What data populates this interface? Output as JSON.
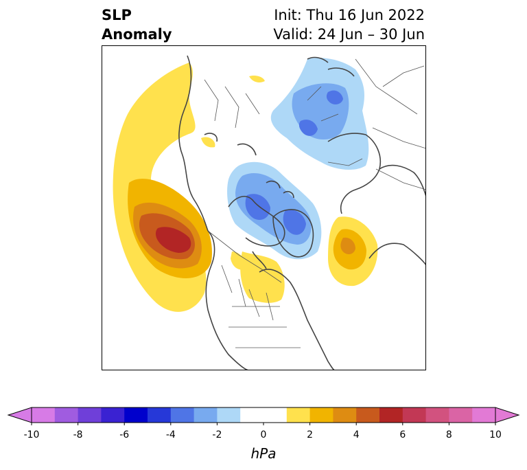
{
  "title": {
    "left_line1": "SLP",
    "left_line2": "Anomaly",
    "init": "Init: Thu 16 Jun 2022",
    "valid": "Valid: 24 Jun – 30 Jun"
  },
  "colorbar": {
    "unit": "hPa",
    "ticks": [
      "-10",
      "-8",
      "-6",
      "-4",
      "-2",
      "0",
      "2",
      "4",
      "6",
      "8",
      "10"
    ],
    "levels": [
      -10,
      -9,
      -8,
      -7,
      -6,
      -5,
      -4,
      -3,
      -2,
      -1,
      1,
      2,
      3,
      4,
      5,
      6,
      7,
      8,
      9,
      10
    ],
    "colors": {
      "under": "#d77be6",
      "bins": [
        "#d77be6",
        "#a05ce0",
        "#6f3fd9",
        "#3a22d2",
        "#0000cc",
        "#2638d8",
        "#4f75e6",
        "#78aaef",
        "#aed8f7",
        "#ffffff",
        "#ffe14d",
        "#f1b400",
        "#de8c12",
        "#c85a1d",
        "#b22525",
        "#c23855",
        "#d2527f",
        "#da64a5",
        "#e27ad5"
      ],
      "over": "#e27ad5"
    }
  },
  "map": {
    "projection": "polar stereographic, Northern Hemisphere",
    "features": [
      "coastlines",
      "country borders",
      "US state borders",
      "Canadian province borders"
    ],
    "anomaly_centers": [
      {
        "region": "Northeast Pacific / Gulf of Alaska",
        "sign": "positive",
        "peak_hPa": 6
      },
      {
        "region": "Greenland / Canadian Arctic",
        "sign": "negative",
        "peak_hPa": -4
      },
      {
        "region": "Northern Siberia / Kara Sea",
        "sign": "negative",
        "peak_hPa": -3
      },
      {
        "region": "North Atlantic",
        "sign": "positive",
        "peak_hPa": 4
      },
      {
        "region": "Hudson Bay / eastern Canada",
        "sign": "positive",
        "peak_hPa": 2
      },
      {
        "region": "Bering Sea arc",
        "sign": "positive",
        "peak_hPa": 2
      }
    ]
  }
}
